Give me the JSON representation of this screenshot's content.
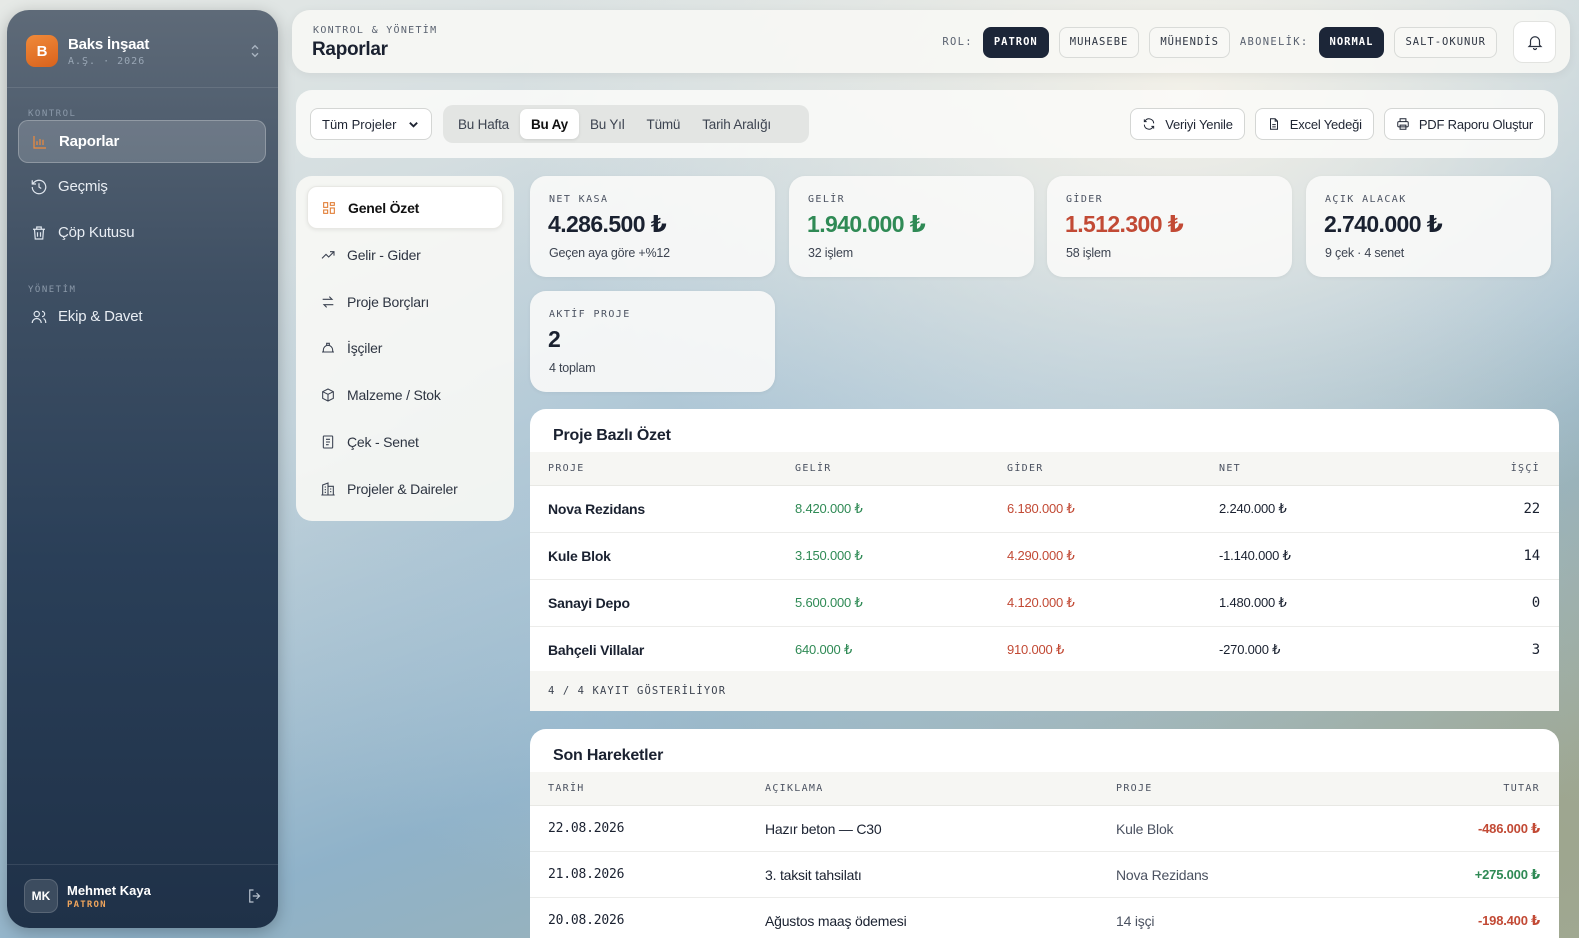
{
  "sidebar": {
    "brand_initial": "B",
    "brand_name": "Baks İnşaat",
    "brand_sub": "A.Ş. · 2026",
    "section_control": "KONTROL",
    "section_management": "YÖNETİM",
    "items": [
      {
        "label": "Raporlar",
        "icon": "bar-chart-icon"
      },
      {
        "label": "Geçmiş",
        "icon": "history-icon"
      },
      {
        "label": "Çöp Kutusu",
        "icon": "trash-icon"
      },
      {
        "label": "Ekip & Davet",
        "icon": "users-icon"
      }
    ],
    "user": {
      "initials": "MK",
      "name": "Mehmet Kaya",
      "role": "PATRON"
    }
  },
  "header": {
    "subtitle": "KONTROL & YÖNETİM",
    "title": "Raporlar",
    "role_label": "ROL:",
    "roles": [
      "PATRON",
      "MUHASEBE",
      "MÜHENDİS"
    ],
    "subscription_label": "ABONELİK:",
    "subscriptions": [
      "NORMAL",
      "SALT-OKUNUR"
    ]
  },
  "toolbar": {
    "project_select": "Tüm Projeler",
    "periods": [
      "Bu Hafta",
      "Bu Ay",
      "Bu Yıl",
      "Tümü",
      "Tarih Aralığı"
    ],
    "refresh": "Veriyi Yenile",
    "excel": "Excel Yedeği",
    "pdf": "PDF Raporu Oluştur"
  },
  "menu": [
    {
      "label": "Genel Özet",
      "icon": "grid-icon"
    },
    {
      "label": "Gelir - Gider",
      "icon": "trend-icon"
    },
    {
      "label": "Proje Borçları",
      "icon": "swap-icon"
    },
    {
      "label": "İşçiler",
      "icon": "hardhat-icon"
    },
    {
      "label": "Malzeme / Stok",
      "icon": "box-icon"
    },
    {
      "label": "Çek - Senet",
      "icon": "receipt-icon"
    },
    {
      "label": "Projeler & Daireler",
      "icon": "building-icon"
    }
  ],
  "cards": [
    {
      "label": "NET KASA",
      "value": "4.286.500 ₺",
      "note": "Geçen aya göre +%12"
    },
    {
      "label": "GELİR",
      "value": "1.940.000 ₺",
      "note": "32 işlem"
    },
    {
      "label": "GİDER",
      "value": "1.512.300 ₺",
      "note": "58 işlem"
    },
    {
      "label": "AÇIK ALACAK",
      "value": "2.740.000 ₺",
      "note": "9 çek · 4 senet"
    },
    {
      "label": "AKTİF PROJE",
      "value": "2",
      "note": "4 toplam"
    }
  ],
  "project_summary": {
    "title": "Proje Bazlı Özet",
    "headers": [
      "PROJE",
      "GELİR",
      "GİDER",
      "NET",
      "İŞÇİ"
    ],
    "rows": [
      [
        "Nova Rezidans",
        "8.420.000 ₺",
        "6.180.000 ₺",
        "2.240.000 ₺",
        "22"
      ],
      [
        "Kule Blok",
        "3.150.000 ₺",
        "4.290.000 ₺",
        "-1.140.000 ₺",
        "14"
      ],
      [
        "Sanayi Depo",
        "5.600.000 ₺",
        "4.120.000 ₺",
        "1.480.000 ₺",
        "0"
      ],
      [
        "Bahçeli Villalar",
        "640.000 ₺",
        "910.000 ₺",
        "-270.000 ₺",
        "3"
      ]
    ],
    "footer": "4 / 4 KAYIT GÖSTERİLİYOR"
  },
  "recent": {
    "title": "Son Hareketler",
    "headers": [
      "TARİH",
      "AÇIKLAMA",
      "PROJE",
      "TUTAR"
    ],
    "rows": [
      [
        "22.08.2026",
        "Hazır beton — C30",
        "Kule Blok",
        "-486.000 ₺"
      ],
      [
        "21.08.2026",
        "3. taksit tahsilatı",
        "Nova Rezidans",
        "+275.000 ₺"
      ],
      [
        "20.08.2026",
        "Ağustos maaş ödemesi",
        "14 işçi",
        "-198.400 ₺"
      ]
    ]
  },
  "colors": {
    "positive": "#2f8a55",
    "negative": "#c24a35",
    "accent": "#e07a30",
    "dark": "#1c2638"
  }
}
